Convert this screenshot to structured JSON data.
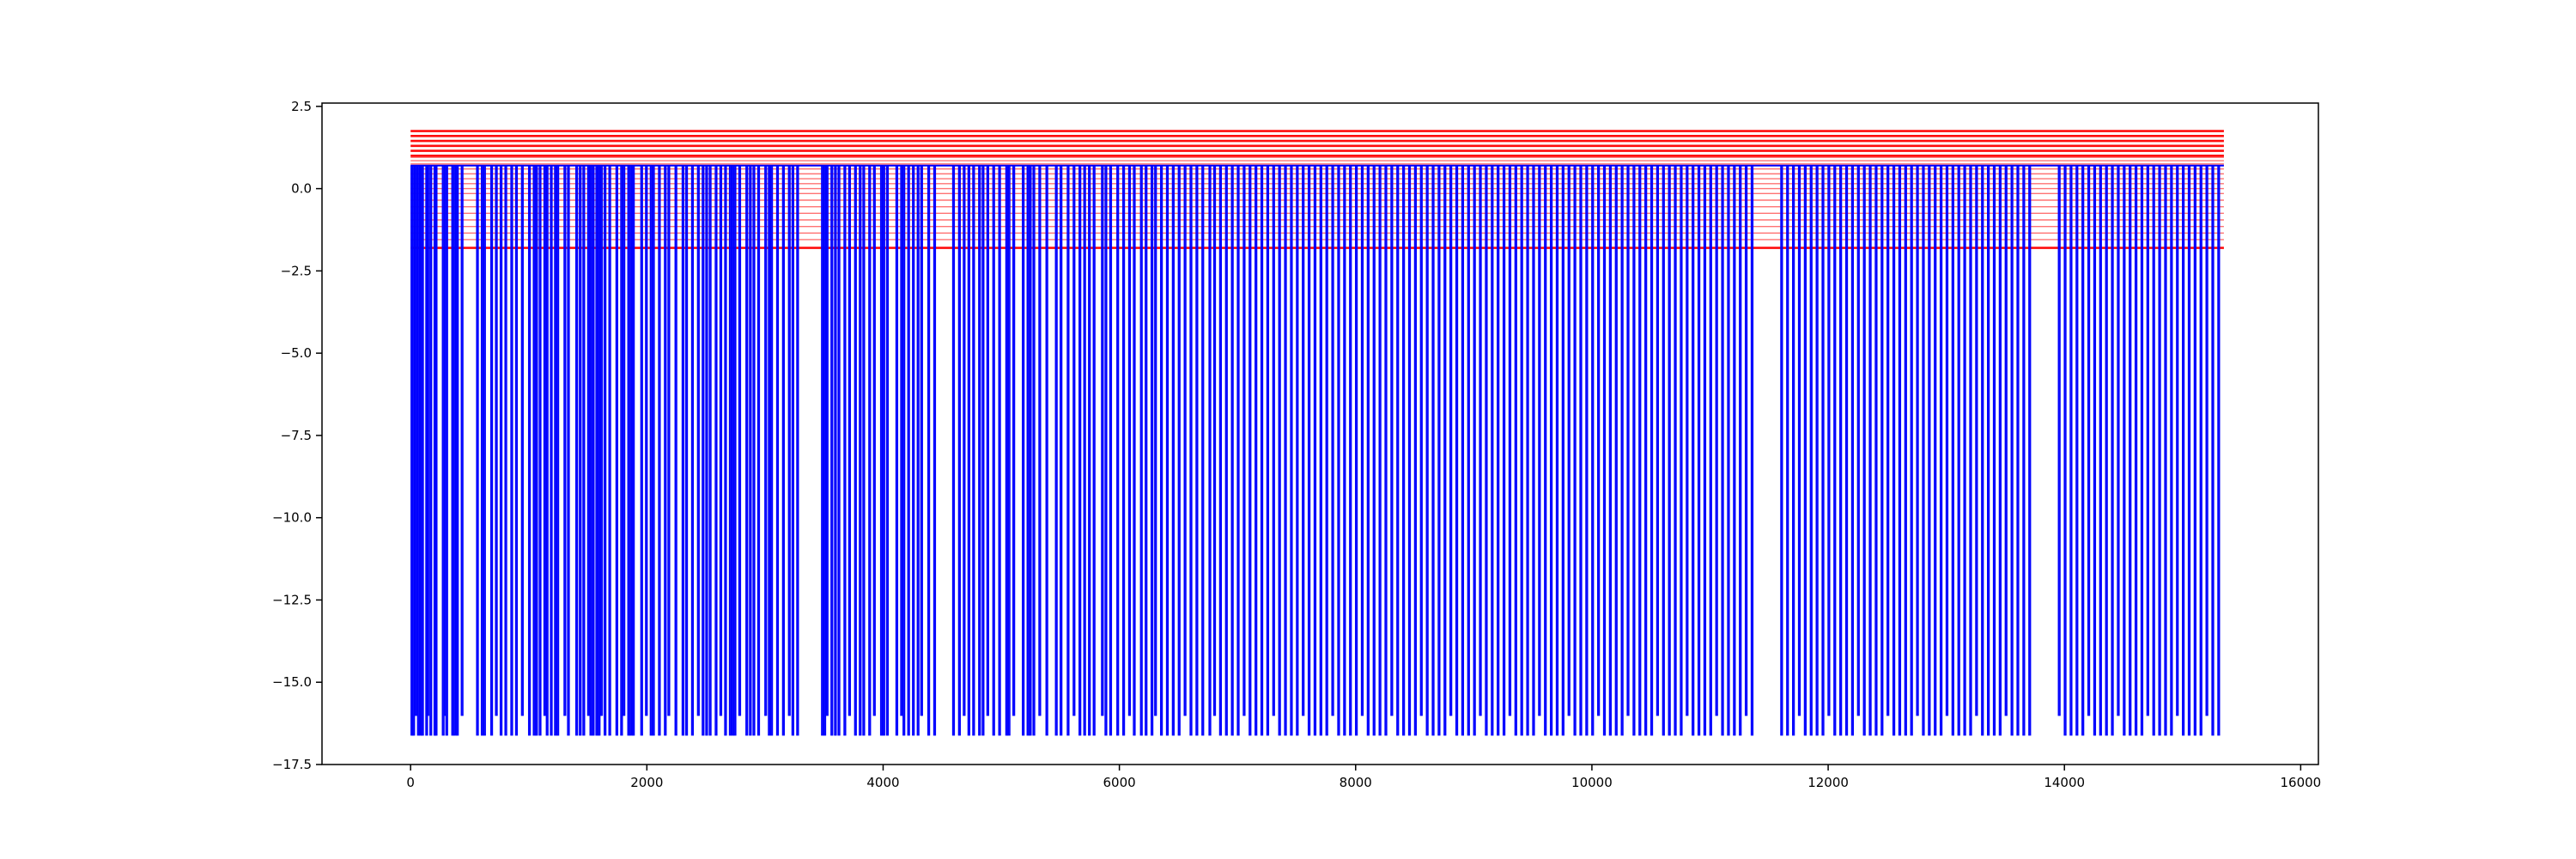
{
  "chart_data": {
    "type": "line",
    "title": "",
    "xlabel": "",
    "ylabel": "",
    "xlim": [
      -750,
      16150
    ],
    "ylim": [
      -17.5,
      2.6
    ],
    "x_ticks": [
      0,
      2000,
      4000,
      6000,
      8000,
      10000,
      12000,
      14000,
      16000
    ],
    "x_tick_labels": [
      "0",
      "2000",
      "4000",
      "6000",
      "8000",
      "10000",
      "12000",
      "14000",
      "16000"
    ],
    "y_ticks": [
      2.5,
      0.0,
      -2.5,
      -5.0,
      -7.5,
      -10.0,
      -12.5,
      -15.0,
      -17.5
    ],
    "y_tick_labels": [
      "2.5",
      "0.0",
      "−2.5",
      "−5.0",
      "−7.5",
      "−10.0",
      "−12.5",
      "−15.0",
      "−17.5"
    ],
    "grid": false,
    "legend": "none",
    "series": [
      {
        "color": "#0000ff",
        "x_range": [
          0,
          15350
        ],
        "baseline": 0.7,
        "spike_low": -16.6,
        "spike_low_alt": -16.0,
        "spike_x": [
          5,
          20,
          40,
          60,
          80,
          95,
          130,
          140,
          165,
          200,
          210,
          270,
          285,
          300,
          350,
          370,
          390,
          430,
          560,
          600,
          620,
          680,
          720,
          760,
          800,
          850,
          890,
          940,
          1000,
          1040,
          1060,
          1090,
          1130,
          1150,
          1185,
          1220,
          1240,
          1300,
          1330,
          1400,
          1430,
          1460,
          1500,
          1520,
          1540,
          1570,
          1590,
          1610,
          1640,
          1680,
          1740,
          1780,
          1800,
          1840,
          1860,
          1880,
          1950,
          1990,
          2030,
          2050,
          2100,
          2150,
          2180,
          2240,
          2300,
          2330,
          2380,
          2430,
          2470,
          2500,
          2530,
          2580,
          2620,
          2660,
          2700,
          2720,
          2740,
          2780,
          2840,
          2870,
          2900,
          2940,
          3000,
          3030,
          3050,
          3100,
          3150,
          3200,
          3230,
          3270,
          3480,
          3500,
          3520,
          3560,
          3590,
          3620,
          3670,
          3710,
          3760,
          3800,
          3830,
          3880,
          3920,
          3980,
          4000,
          4030,
          4110,
          4150,
          4170,
          4210,
          4250,
          4290,
          4320,
          4380,
          4430,
          4590,
          4640,
          4680,
          4720,
          4760,
          4810,
          4840,
          4880,
          4930,
          4980,
          5040,
          5060,
          5100,
          5180,
          5220,
          5240,
          5270,
          5320,
          5380,
          5460,
          5500,
          5560,
          5610,
          5660,
          5700,
          5740,
          5780,
          5850,
          5880,
          5920,
          5980,
          6030,
          6080,
          6120,
          6180,
          6220,
          6270,
          6300,
          6350,
          6400,
          6450,
          6500,
          6550,
          6600,
          6650,
          6700,
          6760,
          6800,
          6850,
          6900,
          6950,
          7000,
          7050,
          7100,
          7150,
          7200,
          7250,
          7300,
          7350,
          7400,
          7450,
          7500,
          7550,
          7600,
          7650,
          7700,
          7750,
          7800,
          7850,
          7900,
          7950,
          8000,
          8050,
          8100,
          8150,
          8200,
          8250,
          8300,
          8350,
          8400,
          8450,
          8500,
          8550,
          8600,
          8650,
          8700,
          8750,
          8800,
          8850,
          8900,
          8950,
          9000,
          9050,
          9100,
          9150,
          9200,
          9250,
          9300,
          9350,
          9400,
          9450,
          9500,
          9550,
          9600,
          9650,
          9700,
          9750,
          9800,
          9850,
          9900,
          9950,
          10000,
          10050,
          10100,
          10150,
          10200,
          10250,
          10300,
          10350,
          10400,
          10450,
          10500,
          10550,
          10600,
          10650,
          10700,
          10750,
          10800,
          10850,
          10900,
          10950,
          11000,
          11050,
          11100,
          11150,
          11200,
          11250,
          11300,
          11350,
          11600,
          11650,
          11700,
          11750,
          11800,
          11850,
          11900,
          11950,
          12000,
          12050,
          12100,
          12150,
          12200,
          12250,
          12300,
          12350,
          12400,
          12450,
          12500,
          12550,
          12600,
          12650,
          12700,
          12750,
          12800,
          12850,
          12900,
          12950,
          13000,
          13050,
          13100,
          13150,
          13200,
          13250,
          13300,
          13350,
          13400,
          13450,
          13500,
          13550,
          13600,
          13650,
          13700,
          13950,
          14000,
          14050,
          14100,
          14150,
          14200,
          14250,
          14300,
          14350,
          14400,
          14450,
          14500,
          14550,
          14600,
          14650,
          14700,
          14750,
          14800,
          14850,
          14900,
          14950,
          15000,
          15050,
          15100,
          15150,
          15200,
          15250,
          15300
        ]
      }
    ],
    "hlines": {
      "color": "#ff0000",
      "x_range": [
        0,
        15350
      ],
      "y_values": [
        1.75,
        1.6,
        1.45,
        1.3,
        1.15,
        1.0,
        0.95,
        0.85,
        0.75,
        0.6,
        0.45,
        0.3,
        0.15,
        0.0,
        -0.15,
        -0.35,
        -0.55,
        -0.75,
        -0.95,
        -1.15,
        -1.35,
        -1.55,
        -1.8
      ]
    }
  }
}
